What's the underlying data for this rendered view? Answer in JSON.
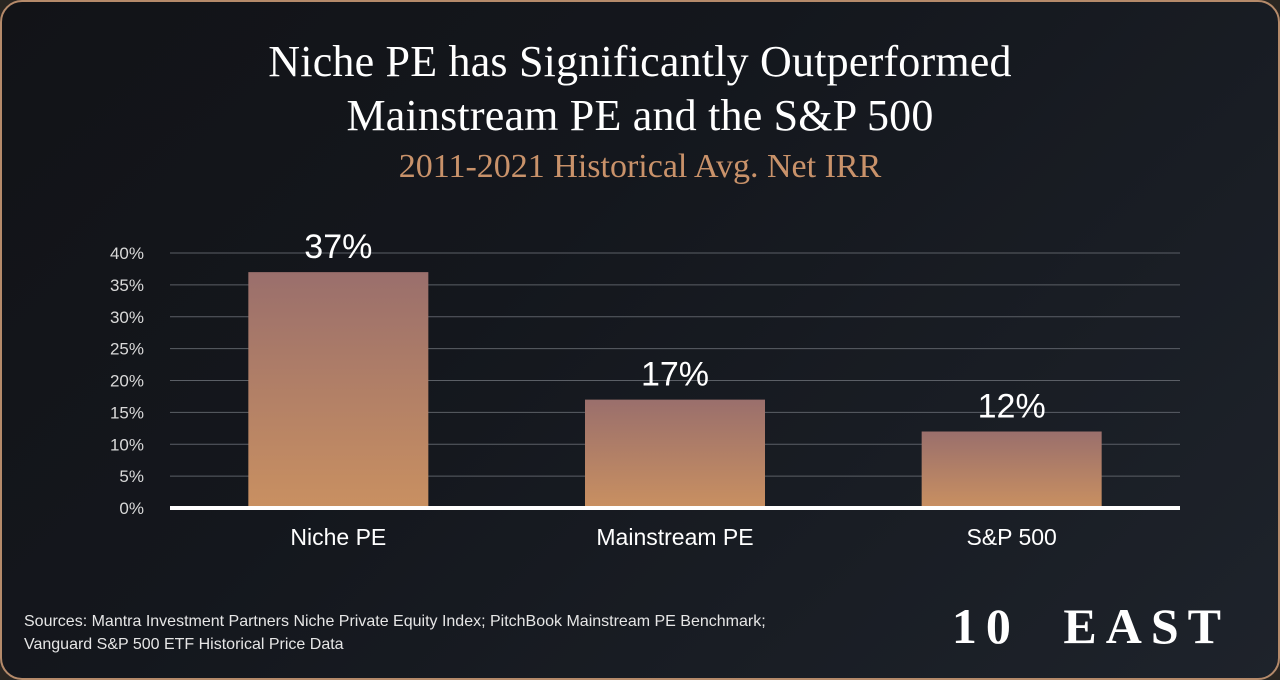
{
  "title_line1": "Niche PE has Significantly Outperformed",
  "title_line2": "Mainstream PE and the S&P 500",
  "subtitle": "2011-2021 Historical Avg. Net IRR",
  "sources_line1": "Sources: Mantra Investment Partners Niche Private Equity Index; PitchBook Mainstream PE Benchmark;",
  "sources_line2": "Vanguard S&P 500 ETF Historical Price Data",
  "logo": "10 EAST",
  "colors": {
    "bar_top": "#9a6f6c",
    "bar_bottom": "#c99061",
    "subtitle": "#c9926a",
    "border": "#b58a6a"
  },
  "chart_data": {
    "type": "bar",
    "title": "Niche PE has Significantly Outperformed Mainstream PE and the S&P 500",
    "subtitle": "2011-2021 Historical Avg. Net IRR",
    "categories": [
      "Niche PE",
      "Mainstream PE",
      "S&P 500"
    ],
    "values": [
      37,
      17,
      12
    ],
    "data_labels": [
      "37%",
      "17%",
      "12%"
    ],
    "yticks": [
      "0%",
      "5%",
      "10%",
      "15%",
      "20%",
      "25%",
      "30%",
      "35%",
      "40%"
    ],
    "ylim": [
      0,
      40
    ],
    "xlabel": "",
    "ylabel": "",
    "grid": true
  }
}
